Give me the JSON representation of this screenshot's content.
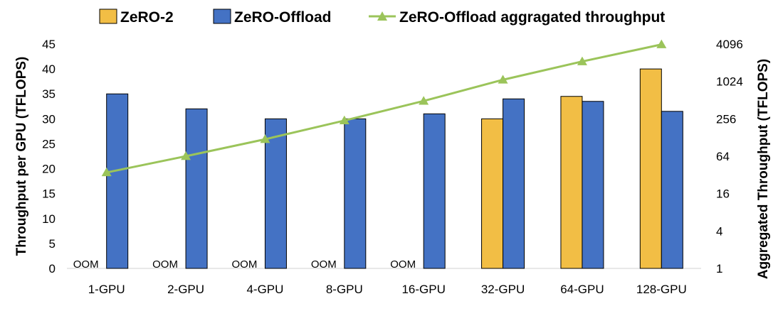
{
  "chart_data": {
    "type": "bar",
    "categories": [
      "1-GPU",
      "2-GPU",
      "4-GPU",
      "8-GPU",
      "16-GPU",
      "32-GPU",
      "64-GPU",
      "128-GPU"
    ],
    "series": [
      {
        "name": "ZeRO-2",
        "kind": "bar",
        "axis": "left",
        "color": "#f2be45",
        "values": [
          null,
          null,
          null,
          null,
          null,
          30,
          34.5,
          40
        ]
      },
      {
        "name": "ZeRO-Offload",
        "kind": "bar",
        "axis": "left",
        "color": "#4472c4",
        "values": [
          35,
          32,
          30,
          30,
          31,
          34,
          33.5,
          31.5
        ]
      },
      {
        "name": "ZeRO-Offload aggragated throughput",
        "kind": "line",
        "axis": "right",
        "color": "#9bc45a",
        "values": [
          35,
          64,
          120,
          240,
          496,
          1088,
          2144,
          4032
        ]
      }
    ],
    "ylabel": "Throughput per GPU (TFLOPS)",
    "y2label": "Aggregated Throughput (TFLOPS)",
    "ylim": [
      0,
      45
    ],
    "yticks": [
      0,
      5,
      10,
      15,
      20,
      25,
      30,
      35,
      40,
      45
    ],
    "y2lim": [
      1,
      4096
    ],
    "y2scale": "log2",
    "y2ticks": [
      1,
      4,
      16,
      64,
      256,
      1024,
      4096
    ],
    "oom_label": "OOM",
    "oom_categories": [
      "1-GPU",
      "2-GPU",
      "4-GPU",
      "8-GPU",
      "16-GPU"
    ],
    "legend_position": "top",
    "grid": false
  }
}
